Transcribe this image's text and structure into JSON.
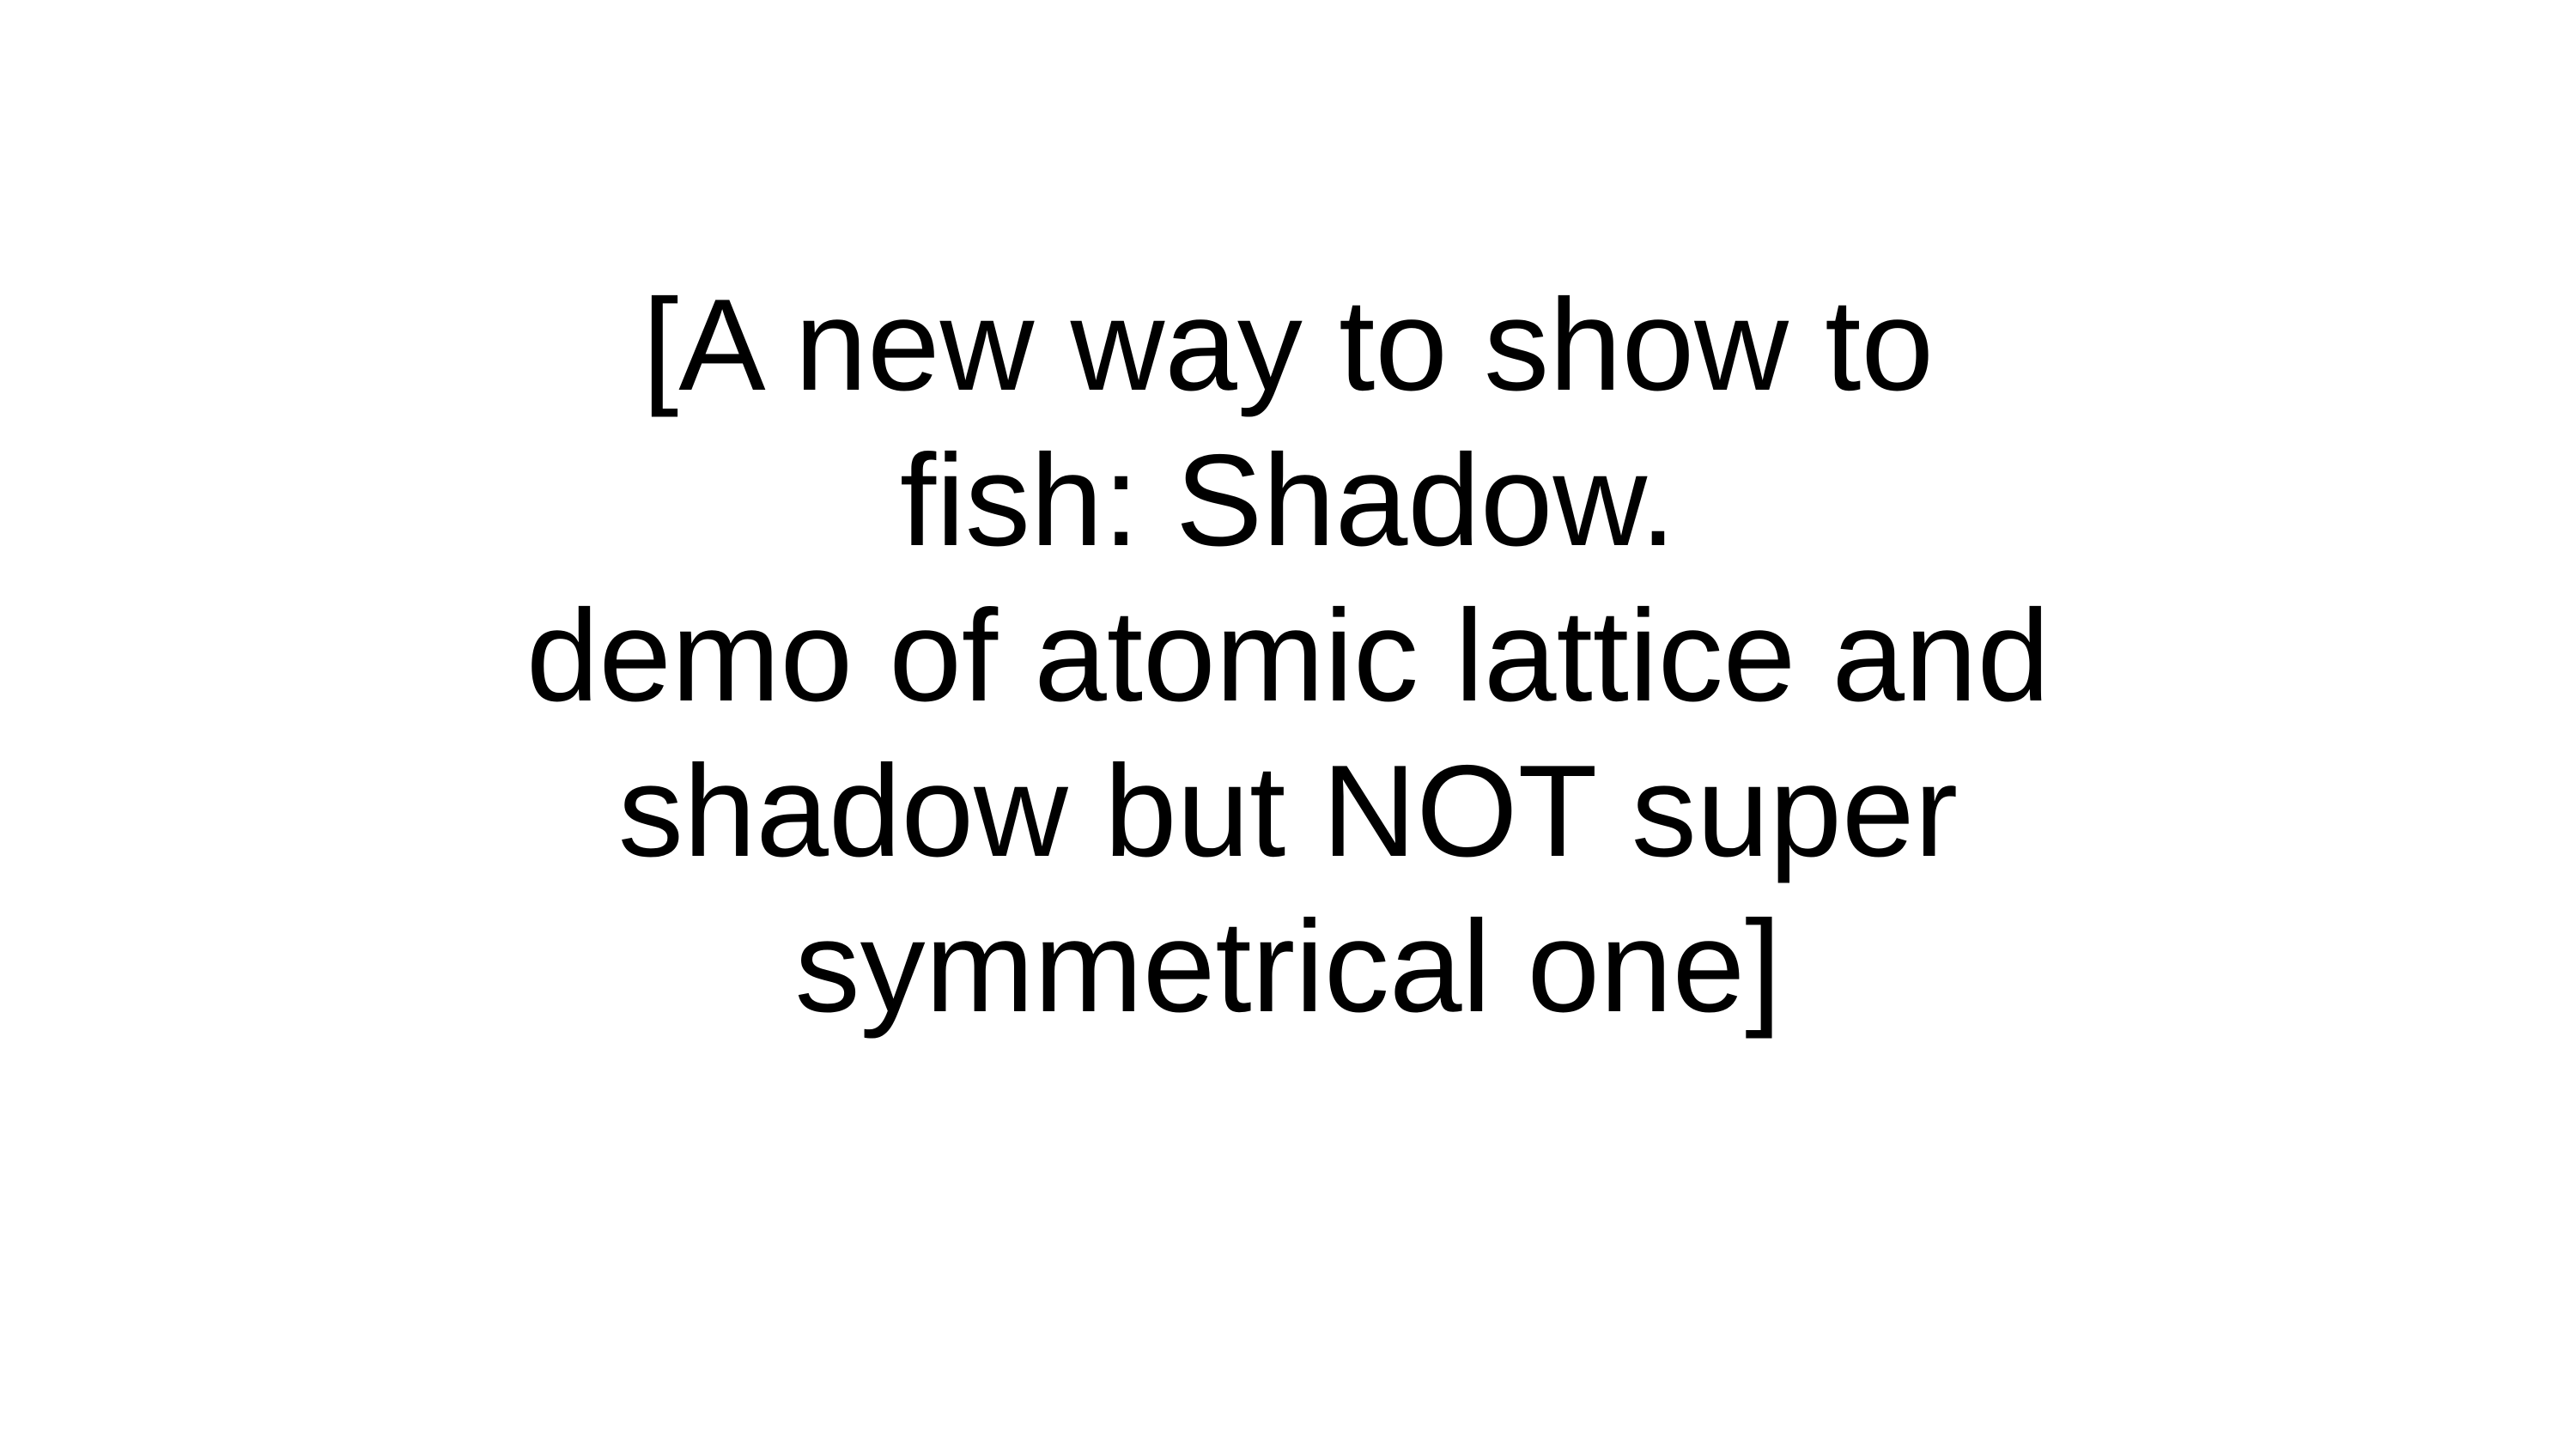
{
  "slide": {
    "background_color": "#ffffff",
    "text_color": "#000000",
    "lines": [
      "[A new way to show to",
      "fish: Shadow.",
      "demo of atomic lattice and",
      "shadow but NOT super",
      "symmetrical one]"
    ]
  }
}
